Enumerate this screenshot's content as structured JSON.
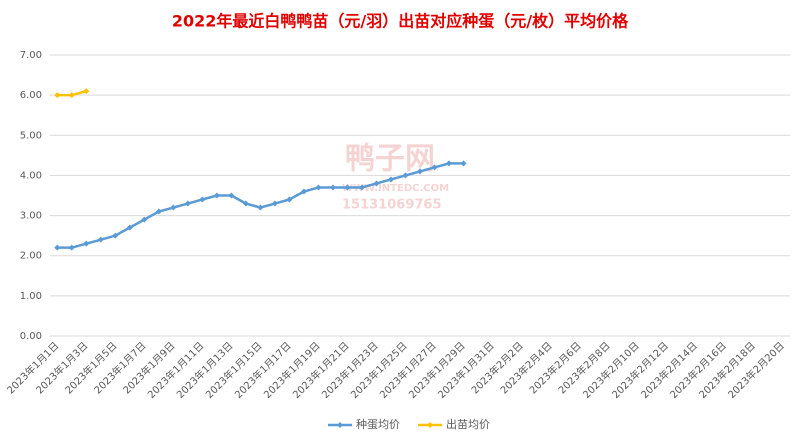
{
  "chart_data": {
    "type": "line",
    "title": "2022年最近白鸭鸭苗（元/羽）出苗对应种蛋（元/枚）平均价格",
    "watermark": [
      "鸭子网",
      "WWW.INTEDC.COM",
      "15131069765"
    ],
    "categories": [
      "2023年1月1日",
      null,
      "2023年1月3日",
      null,
      "2023年1月5日",
      null,
      "2023年1月7日",
      null,
      "2023年1月9日",
      null,
      "2023年1月11日",
      null,
      "2023年1月13日",
      null,
      "2023年1月15日",
      null,
      "2023年1月17日",
      null,
      "2023年1月19日",
      null,
      "2023年1月21日",
      null,
      "2023年1月23日",
      null,
      "2023年1月25日",
      null,
      "2023年1月27日",
      null,
      "2023年1月29日",
      null,
      "2023年1月31日",
      null,
      "2023年2月2日",
      null,
      "2023年2月4日",
      null,
      "2023年2月6日",
      null,
      "2023年2月8日",
      null,
      "2023年2月10日",
      null,
      "2023年2月12日",
      null,
      "2023年2月14日",
      null,
      "2023年2月16日",
      null,
      "2023年2月18日",
      null,
      "2023年2月20日"
    ],
    "series": [
      {
        "name": "种蛋均价",
        "color": "#5b9bd5",
        "values": [
          2.2,
          2.2,
          2.3,
          2.4,
          2.5,
          2.7,
          2.9,
          3.1,
          3.2,
          3.3,
          3.4,
          3.5,
          3.5,
          3.3,
          3.2,
          3.3,
          3.4,
          3.6,
          3.7,
          3.7,
          3.7,
          3.7,
          3.8,
          3.9,
          4.0,
          4.1,
          4.2,
          4.3,
          4.3,
          null,
          null,
          null,
          null,
          null,
          null,
          null,
          null,
          null,
          null,
          null,
          null,
          null,
          null,
          null,
          null,
          null,
          null,
          null,
          null,
          null,
          null
        ]
      },
      {
        "name": "出苗均价",
        "color": "#ffc000",
        "values": [
          6.0,
          6.0,
          6.1,
          null,
          null,
          null,
          null,
          null,
          null,
          null,
          null,
          null,
          null,
          null,
          null,
          null,
          null,
          null,
          null,
          null,
          null,
          null,
          null,
          null,
          null,
          null,
          null,
          null,
          null,
          null,
          null,
          null,
          null,
          null,
          null,
          null,
          null,
          null,
          null,
          null,
          null,
          null,
          null,
          null,
          null,
          null,
          null,
          null,
          null,
          null,
          null
        ]
      }
    ],
    "ylim": [
      0,
      7
    ],
    "yticks": [
      {
        "value": 0,
        "label": "0.00"
      },
      {
        "value": 1,
        "label": "1.00"
      },
      {
        "value": 2,
        "label": "2.00"
      },
      {
        "value": 3,
        "label": "3.00"
      },
      {
        "value": 4,
        "label": "4.00"
      },
      {
        "value": 5,
        "label": "5.00"
      },
      {
        "value": 6,
        "label": "6.00"
      },
      {
        "value": 7,
        "label": "7.00"
      }
    ],
    "grid": true,
    "legend": "bottom"
  }
}
